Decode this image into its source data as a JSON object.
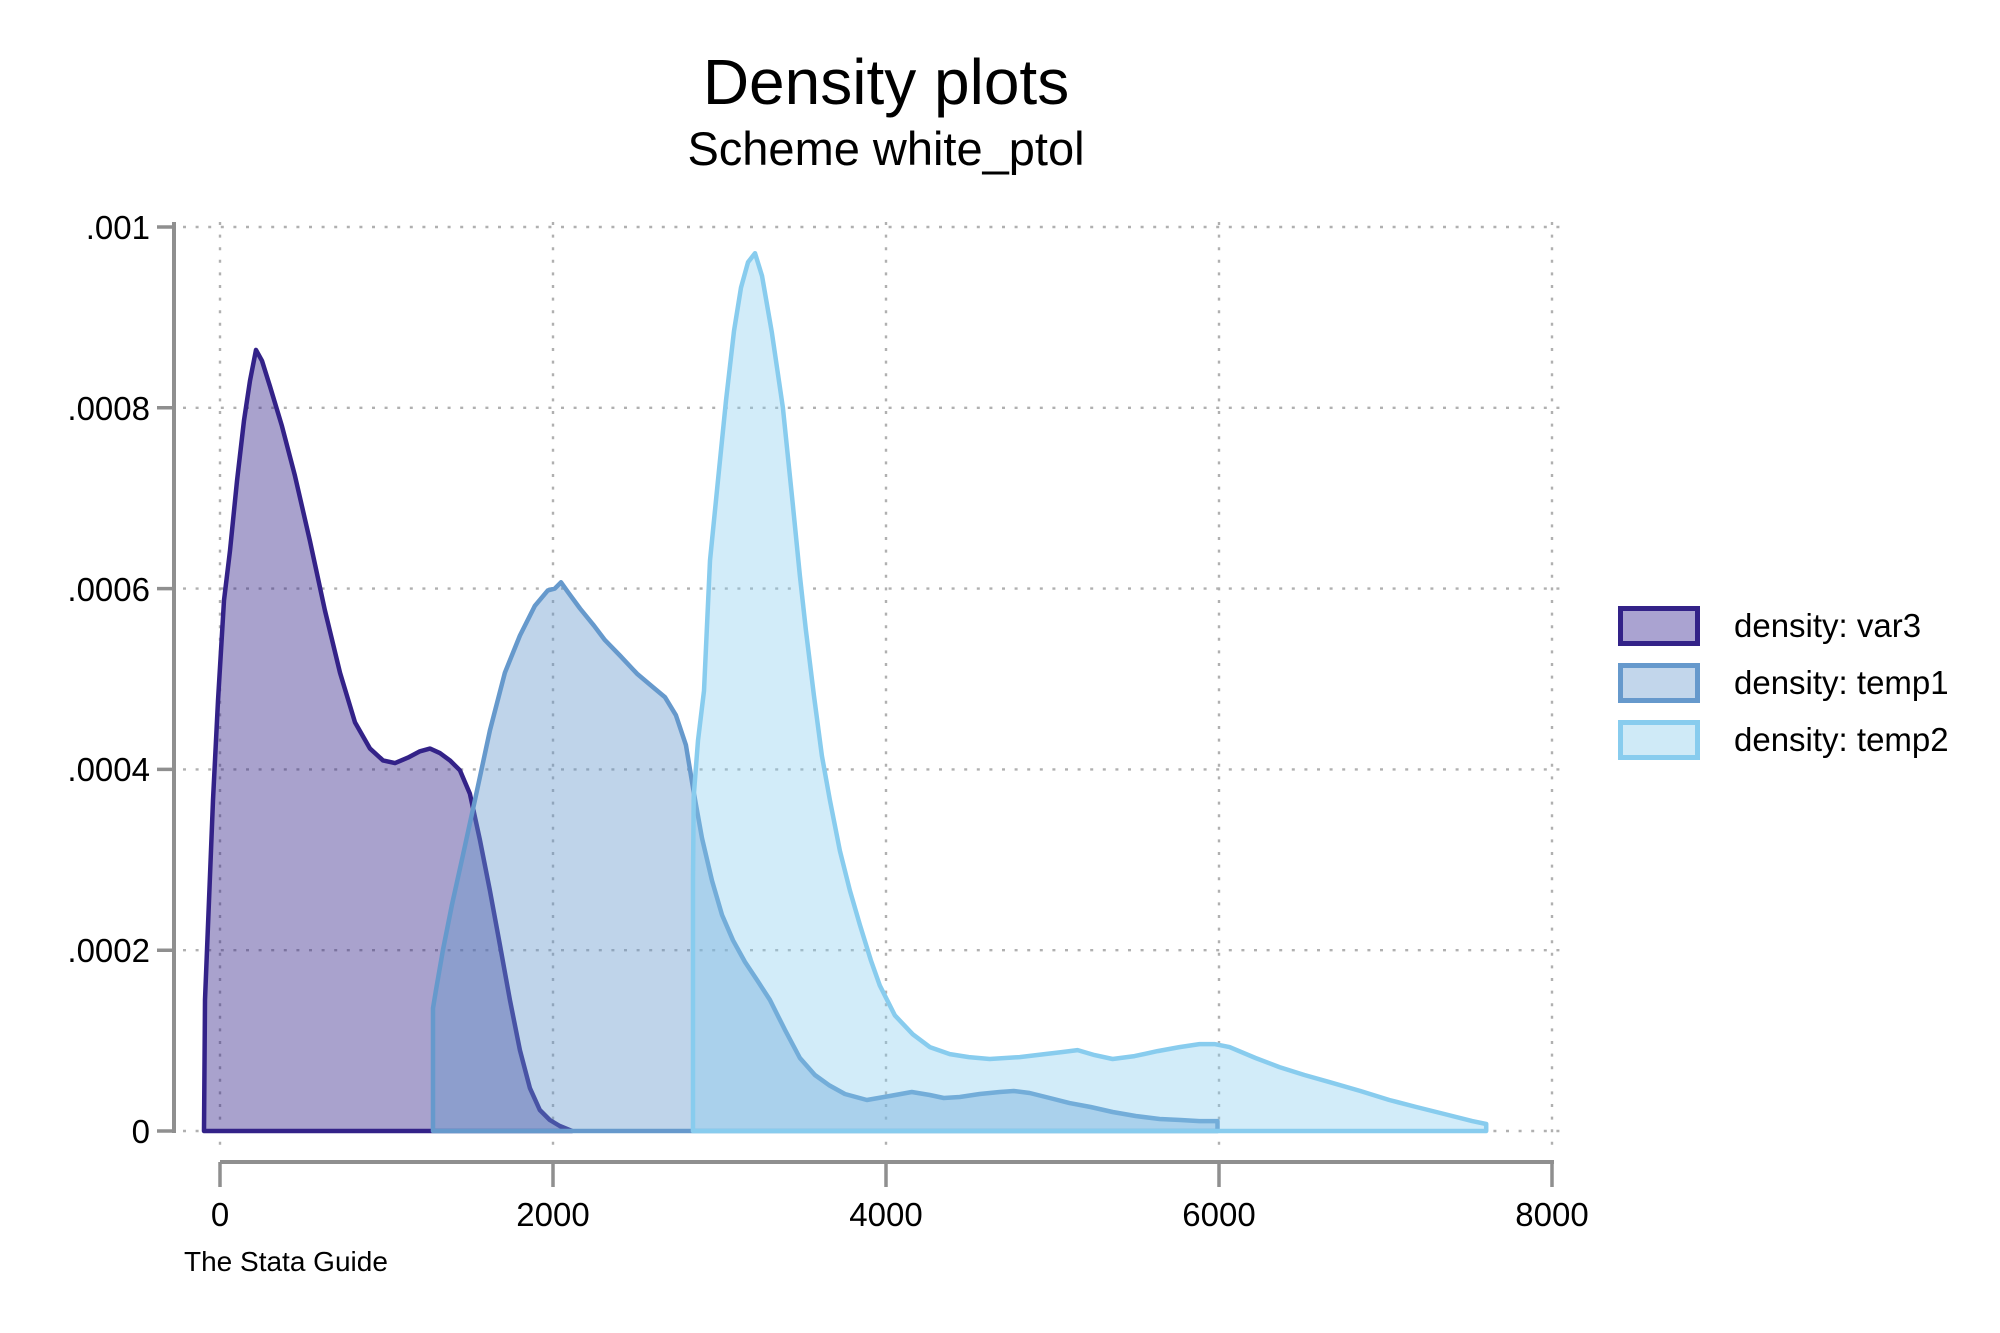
{
  "chart_data": {
    "type": "area",
    "title": "Density plots",
    "subtitle": "Scheme white_ptol",
    "note": "The Stata Guide",
    "xlabel": "",
    "ylabel": "",
    "xlim": [
      0,
      8000
    ],
    "ylim": [
      0,
      0.001
    ],
    "grid": true,
    "grid_style": "dotted",
    "legend_position": "right",
    "axis_color": "#8f8f8f",
    "grid_color": "#b0b0b0",
    "x_ticks": [
      {
        "v": 0,
        "label": "0"
      },
      {
        "v": 2000,
        "label": "2000"
      },
      {
        "v": 4000,
        "label": "4000"
      },
      {
        "v": 6000,
        "label": "6000"
      },
      {
        "v": 8000,
        "label": "8000"
      }
    ],
    "y_ticks": [
      {
        "v": 0,
        "label": "0"
      },
      {
        "v": 0.0002,
        "label": ".0002"
      },
      {
        "v": 0.0004,
        "label": ".0004"
      },
      {
        "v": 0.0006,
        "label": ".0006"
      },
      {
        "v": 0.0008,
        "label": ".0008"
      },
      {
        "v": 0.001,
        "label": ".001"
      }
    ],
    "series": [
      {
        "id": "var3",
        "name": "density: var3",
        "stroke": "#332288",
        "fill": "rgba(51,34,136,0.42)",
        "swatch_fill": "#aaa3d1",
        "peak": {
          "x": 216,
          "y": 0.000864
        },
        "points": [
          [
            -96,
            0
          ],
          [
            -90,
            0.000145
          ],
          [
            -66,
            0.000255
          ],
          [
            -42,
            0.000366
          ],
          [
            -12,
            0.000476
          ],
          [
            24,
            0.000587
          ],
          [
            60,
            0.000642
          ],
          [
            102,
            0.000719
          ],
          [
            144,
            0.000786
          ],
          [
            180,
            0.00083
          ],
          [
            216,
            0.000864
          ],
          [
            252,
            0.000852
          ],
          [
            300,
            0.000824
          ],
          [
            372,
            0.00078
          ],
          [
            450,
            0.000725
          ],
          [
            540,
            0.000653
          ],
          [
            630,
            0.000576
          ],
          [
            721,
            0.000507
          ],
          [
            811,
            0.000452
          ],
          [
            901,
            0.000423
          ],
          [
            979,
            0.00041
          ],
          [
            1051,
            0.000407
          ],
          [
            1129,
            0.000413
          ],
          [
            1201,
            0.00042
          ],
          [
            1261,
            0.000423
          ],
          [
            1321,
            0.000418
          ],
          [
            1381,
            0.00041
          ],
          [
            1441,
            0.000399
          ],
          [
            1501,
            0.000373
          ],
          [
            1561,
            0.000322
          ],
          [
            1621,
            0.000266
          ],
          [
            1681,
            0.000206
          ],
          [
            1741,
            0.000145
          ],
          [
            1801,
            8.95e-05
          ],
          [
            1861,
            4.75e-05
          ],
          [
            1921,
            2.32e-05
          ],
          [
            1981,
            1.22e-05
          ],
          [
            2041,
            5.5e-06
          ],
          [
            2114,
            0
          ]
        ]
      },
      {
        "id": "temp1",
        "name": "density: temp1",
        "stroke": "#6699CC",
        "fill": "rgba(102,153,204,0.42)",
        "swatch_fill": "#c2d6eb",
        "peak": {
          "x": 2048,
          "y": 0.000607
        },
        "points": [
          [
            1279,
            0
          ],
          [
            1279,
            0.000136
          ],
          [
            1297,
            0.000156
          ],
          [
            1339,
            0.0002
          ],
          [
            1393,
            0.00025
          ],
          [
            1459,
            0.000305
          ],
          [
            1537,
            0.000371
          ],
          [
            1621,
            0.000443
          ],
          [
            1711,
            0.000507
          ],
          [
            1801,
            0.000548
          ],
          [
            1891,
            0.000581
          ],
          [
            1969,
            0.000598
          ],
          [
            2011,
            0.0006
          ],
          [
            2048,
            0.000607
          ],
          [
            2090,
            0.000596
          ],
          [
            2162,
            0.000578
          ],
          [
            2246,
            0.000559
          ],
          [
            2312,
            0.000543
          ],
          [
            2402,
            0.000526
          ],
          [
            2504,
            0.000506
          ],
          [
            2600,
            0.000491
          ],
          [
            2672,
            0.00048
          ],
          [
            2738,
            0.00046
          ],
          [
            2798,
            0.000427
          ],
          [
            2847,
            0.000373
          ],
          [
            2895,
            0.000324
          ],
          [
            2955,
            0.000277
          ],
          [
            3015,
            0.000239
          ],
          [
            3081,
            0.000211
          ],
          [
            3153,
            0.000187
          ],
          [
            3225,
            0.000167
          ],
          [
            3303,
            0.000145
          ],
          [
            3393,
            0.000112
          ],
          [
            3483,
            8.07e-05
          ],
          [
            3573,
            6.19e-05
          ],
          [
            3657,
            5.08e-05
          ],
          [
            3753,
            4.09e-05
          ],
          [
            3885,
            3.43e-05
          ],
          [
            4023,
            3.87e-05
          ],
          [
            4155,
            4.31e-05
          ],
          [
            4263,
            3.98e-05
          ],
          [
            4347,
            3.65e-05
          ],
          [
            4443,
            3.76e-05
          ],
          [
            4563,
            4.09e-05
          ],
          [
            4683,
            4.31e-05
          ],
          [
            4767,
            4.42e-05
          ],
          [
            4863,
            4.2e-05
          ],
          [
            4983,
            3.65e-05
          ],
          [
            5103,
            3.09e-05
          ],
          [
            5229,
            2.65e-05
          ],
          [
            5361,
            2.1e-05
          ],
          [
            5499,
            1.66e-05
          ],
          [
            5643,
            1.33e-05
          ],
          [
            5769,
            1.22e-05
          ],
          [
            5883,
            1.1e-05
          ],
          [
            5991,
            1.1e-05
          ],
          [
            5991,
            0
          ]
        ]
      },
      {
        "id": "temp2",
        "name": "density: temp2",
        "stroke": "#88CCEE",
        "fill": "rgba(136,204,238,0.38)",
        "swatch_fill": "#cfeaf7",
        "peak": {
          "x": 3213,
          "y": 0.000971
        },
        "points": [
          [
            2841,
            0
          ],
          [
            2841,
            0.00028
          ],
          [
            2845,
            0.00037
          ],
          [
            2871,
            0.000432
          ],
          [
            2907,
            0.000487
          ],
          [
            2943,
            0.000631
          ],
          [
            2991,
            0.00072
          ],
          [
            3039,
            0.000808
          ],
          [
            3087,
            0.000885
          ],
          [
            3129,
            0.000933
          ],
          [
            3171,
            0.000961
          ],
          [
            3213,
            0.000971
          ],
          [
            3255,
            0.000946
          ],
          [
            3315,
            0.000883
          ],
          [
            3381,
            0.0008
          ],
          [
            3441,
            0.000692
          ],
          [
            3483,
            0.000614
          ],
          [
            3519,
            0.000554
          ],
          [
            3567,
            0.000482
          ],
          [
            3615,
            0.000415
          ],
          [
            3663,
            0.000366
          ],
          [
            3723,
            0.00031
          ],
          [
            3783,
            0.000266
          ],
          [
            3843,
            0.000228
          ],
          [
            3909,
            0.000189
          ],
          [
            3963,
            0.000161
          ],
          [
            4053,
            0.000128
          ],
          [
            4161,
            0.000107
          ],
          [
            4263,
            9.28e-05
          ],
          [
            4383,
            8.51e-05
          ],
          [
            4497,
            8.18e-05
          ],
          [
            4623,
            7.96e-05
          ],
          [
            4803,
            8.18e-05
          ],
          [
            4953,
            8.51e-05
          ],
          [
            5055,
            8.73e-05
          ],
          [
            5151,
            8.95e-05
          ],
          [
            5253,
            8.4e-05
          ],
          [
            5361,
            7.96e-05
          ],
          [
            5493,
            8.29e-05
          ],
          [
            5631,
            8.84e-05
          ],
          [
            5763,
            9.28e-05
          ],
          [
            5883,
            9.61e-05
          ],
          [
            5973,
            9.61e-05
          ],
          [
            6063,
            9.28e-05
          ],
          [
            6219,
            8.07e-05
          ],
          [
            6363,
            7.07e-05
          ],
          [
            6513,
            6.19e-05
          ],
          [
            6663,
            5.41e-05
          ],
          [
            6849,
            4.42e-05
          ],
          [
            7023,
            3.43e-05
          ],
          [
            7185,
            2.65e-05
          ],
          [
            7353,
            1.88e-05
          ],
          [
            7521,
            1.1e-05
          ],
          [
            7605,
            7.7e-06
          ],
          [
            7605,
            0
          ]
        ]
      }
    ]
  }
}
